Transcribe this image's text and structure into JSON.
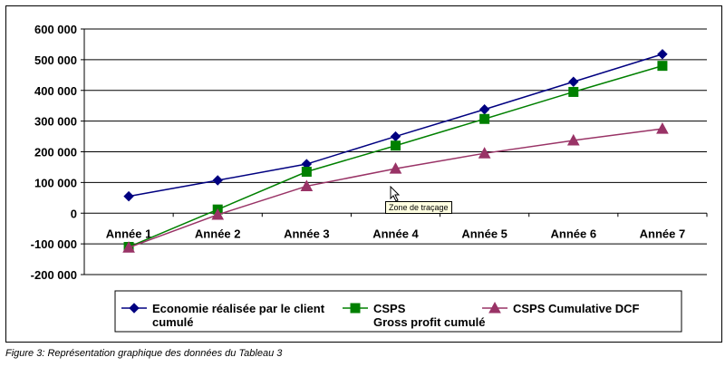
{
  "chart_data": {
    "type": "line",
    "categories": [
      "Année 1",
      "Année 2",
      "Année 3",
      "Année 4",
      "Année 5",
      "Année 6",
      "Année 7"
    ],
    "yticks": [
      "600 000",
      "500 000",
      "400 000",
      "300 000",
      "200 000",
      "100 000",
      "0",
      "-100 000",
      "-200 000"
    ],
    "ylim": [
      -200000,
      600000
    ],
    "grid": true,
    "legend_position": "bottom",
    "series": [
      {
        "name_line1": "Economie réalisée par le client",
        "name_line2": "cumulé",
        "marker": "diamond",
        "color": "#000080",
        "values": [
          55000,
          107000,
          160000,
          250000,
          338000,
          428000,
          518000
        ]
      },
      {
        "name_line1": "CSPS",
        "name_line2": "Gross profit cumulé",
        "marker": "square",
        "color": "#008000",
        "values": [
          -110000,
          12000,
          135000,
          220000,
          307000,
          395000,
          480000
        ]
      },
      {
        "name_line1": "CSPS Cumulative DCF",
        "name_line2": "",
        "marker": "triangle",
        "color": "#993366",
        "values": [
          -112000,
          -5000,
          88000,
          145000,
          195000,
          237000,
          275000
        ]
      }
    ]
  },
  "tooltip": {
    "text": "Zone de traçage"
  },
  "caption": {
    "text": "Figure 3: Représentation graphique des données du Tableau 3"
  },
  "icons": {
    "cursor": "pointer-arrow-icon"
  }
}
